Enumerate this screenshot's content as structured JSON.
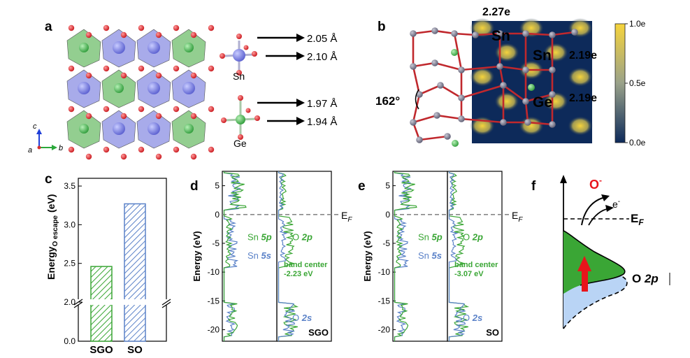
{
  "figure": {
    "panel_labels": [
      "a",
      "b",
      "c",
      "d",
      "e",
      "f"
    ]
  },
  "panel_a": {
    "sn_label": "Sn",
    "ge_label": "Ge",
    "bonds": [
      {
        "label": "2.05 Å"
      },
      {
        "label": "2.10 Å"
      },
      {
        "label": "1.97 Å"
      },
      {
        "label": "1.94 Å"
      }
    ],
    "axes": [
      "c",
      "a",
      "b"
    ]
  },
  "panel_b": {
    "angle": "162°",
    "charges": {
      "top": "2.27e",
      "sn_right": "2.19e",
      "ge_right": "2.19e"
    },
    "atoms": {
      "sn1": "Sn",
      "sn2": "Sn",
      "ge": "Ge"
    },
    "colorbar_ticks": [
      "1.0e",
      "0.5e",
      "0.0e"
    ],
    "colorbar_colors": [
      "#f6d43c",
      "#9aa28a",
      "#0d2a5a"
    ]
  },
  "panel_c": {
    "chart_data": {
      "type": "bar",
      "categories": [
        "SGO",
        "SO"
      ],
      "values": [
        2.46,
        3.27
      ],
      "ylabel_main": "Energy",
      "ylabel_sub": "O escape",
      "ylabel_unit": "(eV)",
      "ylim": [
        0,
        3.6
      ],
      "axis_break": 2.0,
      "yticks": [
        {
          "value": 0,
          "label": "0.0"
        },
        {
          "value": 2.0,
          "label": "2.0"
        },
        {
          "value": 2.5,
          "label": "2.5"
        },
        {
          "value": 3.0,
          "label": "3.0"
        },
        {
          "value": 3.5,
          "label": "3.5"
        }
      ],
      "colors": [
        "#3aa635",
        "#5b82c8"
      ]
    }
  },
  "panel_d": {
    "chart_data": {
      "type": "line",
      "ylabel": "Energy (eV)",
      "ylim": [
        -22,
        7.5
      ],
      "yticks": [
        "5",
        "0",
        "-5",
        "-10",
        "-15",
        "-20"
      ],
      "fermi_label": "E",
      "fermi_sub": "F",
      "sample": "SGO",
      "labels": {
        "sn5p": "Sn",
        "sn5p_b": "5p",
        "sn5s": "Sn",
        "sn5s_b": "5s",
        "o2p": "O",
        "o2p_b": "2p",
        "o2s": "O",
        "o2s_b": "2s",
        "bc1": "band center",
        "bc2": "-2.23 eV"
      }
    }
  },
  "panel_e": {
    "chart_data": {
      "type": "line",
      "ylabel": "Energy (eV)",
      "ylim": [
        -22,
        7.5
      ],
      "yticks": [
        "5",
        "0",
        "-5",
        "-10",
        "-15",
        "-20"
      ],
      "fermi_label": "E",
      "fermi_sub": "F",
      "sample": "SO",
      "labels": {
        "sn5p": "Sn",
        "sn5p_b": "5p",
        "sn5s": "Sn",
        "sn5s_b": "5s",
        "o2p": "O",
        "o2p_b": "2p",
        "o2s": "O",
        "o2s_b": "2s",
        "bc1": "band center",
        "bc2": "-3.07 eV"
      }
    }
  },
  "panel_f": {
    "o_minus": "O",
    "o_minus_sup": "-",
    "electron": "e",
    "electron_sup": "-",
    "fermi": "E",
    "fermi_sub": "F",
    "o2p": "O",
    "o2p_b": "2p",
    "colors": {
      "green": "#3aa635",
      "blue": "#b9d4f5",
      "arrow": "#e8141b",
      "ominus": "#e8141b"
    }
  }
}
